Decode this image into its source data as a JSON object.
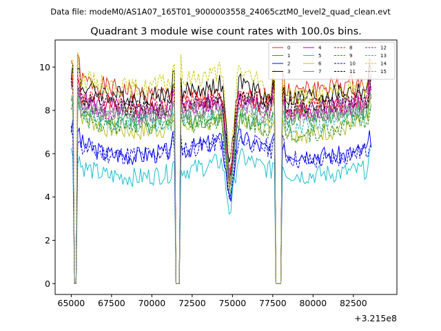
{
  "chart_data": {
    "type": "line",
    "suptitle": "Data file: modeM0/AS1A07_165T01_9000003558_24065cztM0_level2_quad_clean.evt",
    "title": "Quadrant 3 module wise count rates with 100.0s bins.",
    "xlabel": "",
    "ylabel": "",
    "x_offset_label": "+3.215e8",
    "xlim": [
      64000,
      85200
    ],
    "ylim": [
      -0.5,
      11.25
    ],
    "x_ticks": [
      65000,
      67500,
      70000,
      72500,
      75000,
      77500,
      80000,
      82500
    ],
    "x_tick_labels": [
      "65000",
      "67500",
      "70000",
      "72500",
      "75000",
      "77500",
      "80000",
      "82500"
    ],
    "y_ticks": [
      0,
      2,
      4,
      6,
      8,
      10
    ],
    "y_tick_labels": [
      "0",
      "2",
      "4",
      "6",
      "8",
      "10"
    ],
    "legend_position": "upper right",
    "segments": [
      [
        65000,
        65100
      ],
      [
        65400,
        71400
      ],
      [
        71750,
        77600
      ],
      [
        78100,
        83600
      ]
    ],
    "dips": [
      [
        74850,
        0.55
      ]
    ],
    "series": [
      {
        "name": "0",
        "color": "#d62728",
        "dash": false,
        "profile": [
          9.5,
          9.0,
          8.7,
          8.6,
          8.6,
          8.8,
          9.1,
          9.3
        ],
        "seed": 1
      },
      {
        "name": "1",
        "color": "#2ca02c",
        "dash": false,
        "profile": [
          8.0,
          7.7,
          7.6,
          7.6,
          7.5,
          7.6,
          7.8,
          8.0
        ],
        "seed": 2
      },
      {
        "name": "2",
        "color": "#0000ff",
        "dash": false,
        "profile": [
          6.7,
          6.0,
          5.9,
          6.1,
          6.4,
          6.8,
          6.1,
          6.0,
          5.9,
          6.2
        ],
        "seed": 3
      },
      {
        "name": "3",
        "color": "#000000",
        "dash": false,
        "profile": [
          9.2,
          8.8,
          8.6,
          8.8,
          9.0,
          9.4,
          8.5,
          8.6,
          8.8,
          9.0
        ],
        "seed": 4
      },
      {
        "name": "4",
        "color": "#aa00aa",
        "dash": false,
        "profile": [
          8.6,
          8.2,
          8.0,
          8.1,
          8.3,
          8.5,
          8.1,
          8.0,
          8.2,
          8.4
        ],
        "seed": 5
      },
      {
        "name": "5",
        "color": "#17becf",
        "dash": false,
        "profile": [
          5.6,
          5.0,
          4.9,
          5.1,
          5.4,
          5.9,
          5.2,
          5.0,
          5.1,
          5.3
        ],
        "seed": 6
      },
      {
        "name": "6",
        "color": "#bcbd22",
        "dash": false,
        "profile": [
          8.0,
          7.2,
          7.0,
          7.2,
          7.5,
          7.8,
          7.2,
          6.9,
          7.1,
          7.5
        ],
        "seed": 7
      },
      {
        "name": "7",
        "color": "#7f7f7f",
        "dash": false,
        "profile": [
          8.4,
          8.0,
          7.8,
          7.9,
          8.1,
          8.3,
          7.9,
          7.8,
          8.0,
          8.2
        ],
        "seed": 8
      },
      {
        "name": "8",
        "color": "#ff0000",
        "dash": true,
        "profile": [
          8.8,
          8.4,
          8.2,
          8.3,
          8.5,
          8.7,
          8.2,
          8.1,
          8.3,
          8.6
        ],
        "seed": 9
      },
      {
        "name": "9",
        "color": "#228b22",
        "dash": true,
        "profile": [
          7.8,
          7.4,
          7.2,
          7.3,
          7.5,
          7.7,
          7.1,
          6.9,
          7.2,
          7.6
        ],
        "seed": 10
      },
      {
        "name": "10",
        "color": "#0000cd",
        "dash": true,
        "profile": [
          6.4,
          6.0,
          5.9,
          6.1,
          6.4,
          6.7,
          6.2,
          5.6,
          5.8,
          6.2
        ],
        "seed": 11
      },
      {
        "name": "11",
        "color": "#000000",
        "dash": true,
        "profile": [
          8.6,
          8.3,
          8.1,
          8.2,
          8.4,
          8.7,
          8.3,
          8.2,
          8.4,
          8.6
        ],
        "seed": 12
      },
      {
        "name": "12",
        "color": "#c000c0",
        "dash": true,
        "profile": [
          8.4,
          8.0,
          7.8,
          8.0,
          8.2,
          8.4,
          8.0,
          7.9,
          8.1,
          8.4
        ],
        "seed": 13
      },
      {
        "name": "13",
        "color": "#20b2aa",
        "dash": true,
        "profile": [
          7.9,
          7.5,
          7.4,
          7.5,
          7.7,
          7.9,
          7.5,
          7.3,
          7.5,
          7.8
        ],
        "seed": 14
      },
      {
        "name": "14",
        "color": "#c8c800",
        "dash": true,
        "profile": [
          9.6,
          9.2,
          9.0,
          9.3,
          9.6,
          10.0,
          8.8,
          8.7,
          8.9,
          9.2
        ],
        "seed": 15
      },
      {
        "name": "15",
        "color": "#8c8c8c",
        "dash": true,
        "profile": [
          8.2,
          7.8,
          7.7,
          7.8,
          8.0,
          8.2,
          7.8,
          7.7,
          7.9,
          8.1
        ],
        "seed": 16
      }
    ]
  }
}
